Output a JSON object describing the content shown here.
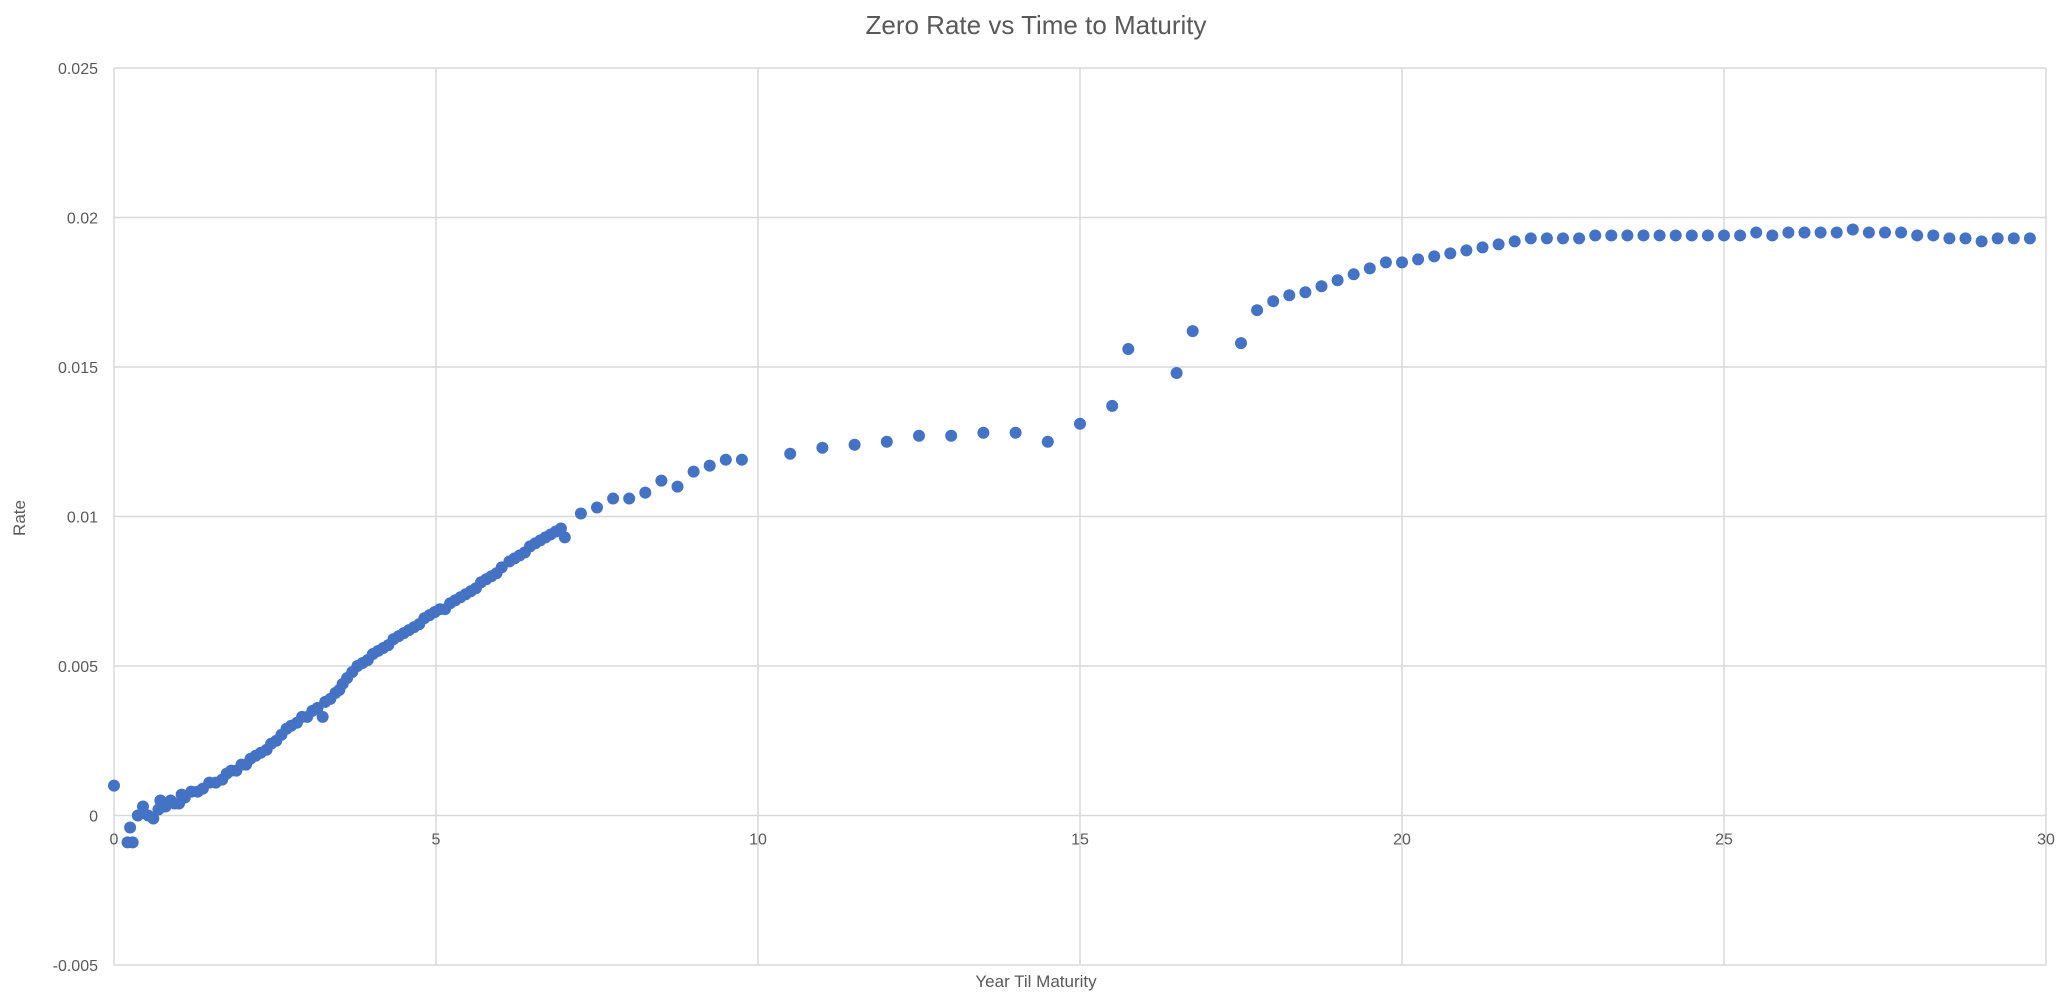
{
  "chart_data": {
    "type": "scatter",
    "title": "Zero Rate vs Time to Maturity",
    "xlabel": "Year Til Maturity",
    "ylabel": "Rate",
    "xlim": [
      0,
      30
    ],
    "ylim": [
      -0.005,
      0.025
    ],
    "x_ticks": [
      0,
      5,
      10,
      15,
      20,
      25,
      30
    ],
    "y_ticks": [
      -0.005,
      0,
      0.005,
      0.01,
      0.015,
      0.02,
      0.025
    ],
    "y_tick_labels": [
      "-0.005",
      "0",
      "0.005",
      "0.01",
      "0.015",
      "0.02",
      "0.025"
    ],
    "grid": true,
    "legend": "none",
    "marker_color": "#4472C4",
    "grid_color": "#D9D9D9",
    "series": [
      {
        "name": "Rate",
        "points": [
          [
            0.0,
            0.001
          ],
          [
            0.21,
            -0.0009
          ],
          [
            0.25,
            -0.0004
          ],
          [
            0.29,
            -0.0009
          ],
          [
            0.37,
            0.0
          ],
          [
            0.45,
            0.0003
          ],
          [
            0.53,
            0.0
          ],
          [
            0.61,
            -0.0001
          ],
          [
            0.69,
            0.0002
          ],
          [
            0.72,
            0.0005
          ],
          [
            0.8,
            0.0003
          ],
          [
            0.88,
            0.0005
          ],
          [
            0.94,
            0.0004
          ],
          [
            1.01,
            0.0004
          ],
          [
            1.05,
            0.0007
          ],
          [
            1.1,
            0.0006
          ],
          [
            1.2,
            0.0008
          ],
          [
            1.3,
            0.0008
          ],
          [
            1.38,
            0.0009
          ],
          [
            1.48,
            0.0011
          ],
          [
            1.58,
            0.0011
          ],
          [
            1.68,
            0.0012
          ],
          [
            1.75,
            0.0014
          ],
          [
            1.82,
            0.0015
          ],
          [
            1.9,
            0.0015
          ],
          [
            1.98,
            0.0017
          ],
          [
            2.05,
            0.0017
          ],
          [
            2.12,
            0.0019
          ],
          [
            2.2,
            0.002
          ],
          [
            2.28,
            0.0021
          ],
          [
            2.37,
            0.0022
          ],
          [
            2.44,
            0.0024
          ],
          [
            2.52,
            0.0025
          ],
          [
            2.6,
            0.0027
          ],
          [
            2.68,
            0.0029
          ],
          [
            2.75,
            0.003
          ],
          [
            2.84,
            0.0031
          ],
          [
            2.92,
            0.0033
          ],
          [
            3.0,
            0.0033
          ],
          [
            3.08,
            0.0035
          ],
          [
            3.16,
            0.0036
          ],
          [
            3.24,
            0.0033
          ],
          [
            3.28,
            0.0038
          ],
          [
            3.36,
            0.0039
          ],
          [
            3.44,
            0.0041
          ],
          [
            3.5,
            0.0042
          ],
          [
            3.55,
            0.0044
          ],
          [
            3.62,
            0.0046
          ],
          [
            3.7,
            0.0048
          ],
          [
            3.78,
            0.005
          ],
          [
            3.86,
            0.0051
          ],
          [
            3.94,
            0.0052
          ],
          [
            4.02,
            0.0054
          ],
          [
            4.1,
            0.0055
          ],
          [
            4.18,
            0.0056
          ],
          [
            4.26,
            0.0057
          ],
          [
            4.34,
            0.0059
          ],
          [
            4.42,
            0.006
          ],
          [
            4.5,
            0.0061
          ],
          [
            4.58,
            0.0062
          ],
          [
            4.66,
            0.0063
          ],
          [
            4.74,
            0.0064
          ],
          [
            4.82,
            0.0066
          ],
          [
            4.9,
            0.0067
          ],
          [
            4.98,
            0.0068
          ],
          [
            5.06,
            0.0069
          ],
          [
            5.14,
            0.0069
          ],
          [
            5.22,
            0.0071
          ],
          [
            5.3,
            0.0072
          ],
          [
            5.38,
            0.0073
          ],
          [
            5.46,
            0.0074
          ],
          [
            5.54,
            0.0075
          ],
          [
            5.62,
            0.0076
          ],
          [
            5.7,
            0.0078
          ],
          [
            5.78,
            0.0079
          ],
          [
            5.86,
            0.008
          ],
          [
            5.94,
            0.0081
          ],
          [
            6.02,
            0.0083
          ],
          [
            6.14,
            0.0085
          ],
          [
            6.22,
            0.0086
          ],
          [
            6.3,
            0.0087
          ],
          [
            6.38,
            0.0088
          ],
          [
            6.46,
            0.009
          ],
          [
            6.54,
            0.0091
          ],
          [
            6.62,
            0.0092
          ],
          [
            6.7,
            0.0093
          ],
          [
            6.78,
            0.0094
          ],
          [
            6.86,
            0.0095
          ],
          [
            6.94,
            0.0096
          ],
          [
            7.0,
            0.0093
          ],
          [
            7.25,
            0.0101
          ],
          [
            7.5,
            0.0103
          ],
          [
            7.75,
            0.0106
          ],
          [
            8.0,
            0.0106
          ],
          [
            8.25,
            0.0108
          ],
          [
            8.5,
            0.0112
          ],
          [
            8.75,
            0.011
          ],
          [
            9.0,
            0.0115
          ],
          [
            9.25,
            0.0117
          ],
          [
            9.5,
            0.0119
          ],
          [
            9.75,
            0.0119
          ],
          [
            10.5,
            0.0121
          ],
          [
            11.0,
            0.0123
          ],
          [
            11.5,
            0.0124
          ],
          [
            12.0,
            0.0125
          ],
          [
            12.5,
            0.0127
          ],
          [
            13.0,
            0.0127
          ],
          [
            13.5,
            0.0128
          ],
          [
            14.0,
            0.0128
          ],
          [
            14.5,
            0.0125
          ],
          [
            15.0,
            0.0131
          ],
          [
            15.5,
            0.0137
          ],
          [
            15.75,
            0.0156
          ],
          [
            16.5,
            0.0148
          ],
          [
            16.75,
            0.0162
          ],
          [
            17.5,
            0.0158
          ],
          [
            17.75,
            0.0169
          ],
          [
            18.0,
            0.0172
          ],
          [
            18.25,
            0.0174
          ],
          [
            18.5,
            0.0175
          ],
          [
            18.75,
            0.0177
          ],
          [
            19.0,
            0.0179
          ],
          [
            19.25,
            0.0181
          ],
          [
            19.5,
            0.0183
          ],
          [
            19.75,
            0.0185
          ],
          [
            20.0,
            0.0185
          ],
          [
            20.25,
            0.0186
          ],
          [
            20.5,
            0.0187
          ],
          [
            20.75,
            0.0188
          ],
          [
            21.0,
            0.0189
          ],
          [
            21.25,
            0.019
          ],
          [
            21.5,
            0.0191
          ],
          [
            21.75,
            0.0192
          ],
          [
            22.0,
            0.0193
          ],
          [
            22.25,
            0.0193
          ],
          [
            22.5,
            0.0193
          ],
          [
            22.75,
            0.0193
          ],
          [
            23.0,
            0.0194
          ],
          [
            23.25,
            0.0194
          ],
          [
            23.5,
            0.0194
          ],
          [
            23.75,
            0.0194
          ],
          [
            24.0,
            0.0194
          ],
          [
            24.25,
            0.0194
          ],
          [
            24.5,
            0.0194
          ],
          [
            24.75,
            0.0194
          ],
          [
            25.0,
            0.0194
          ],
          [
            25.25,
            0.0194
          ],
          [
            25.5,
            0.0195
          ],
          [
            25.75,
            0.0194
          ],
          [
            26.0,
            0.0195
          ],
          [
            26.25,
            0.0195
          ],
          [
            26.5,
            0.0195
          ],
          [
            26.75,
            0.0195
          ],
          [
            27.0,
            0.0196
          ],
          [
            27.25,
            0.0195
          ],
          [
            27.5,
            0.0195
          ],
          [
            27.75,
            0.0195
          ],
          [
            28.0,
            0.0194
          ],
          [
            28.25,
            0.0194
          ],
          [
            28.5,
            0.0193
          ],
          [
            28.75,
            0.0193
          ],
          [
            29.0,
            0.0192
          ],
          [
            29.25,
            0.0193
          ],
          [
            29.5,
            0.0193
          ],
          [
            29.75,
            0.0193
          ]
        ]
      }
    ]
  }
}
